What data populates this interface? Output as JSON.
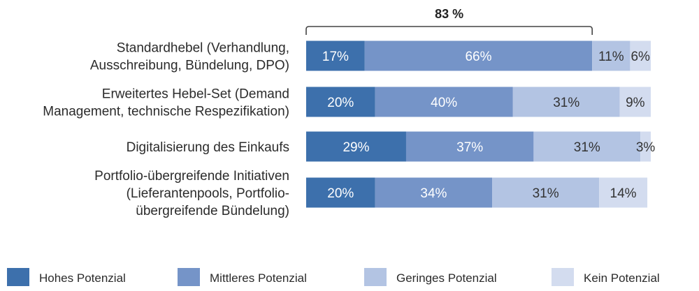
{
  "chart_data": {
    "type": "bar",
    "orientation": "horizontal",
    "stacked": true,
    "normalized": true,
    "grid": false,
    "legend_position": "bottom",
    "categories": [
      [
        "Standardhebel (Verhandlung,",
        "Ausschreibung, Bündelung, DPO)"
      ],
      [
        "Erweitertes Hebel-Set (Demand",
        "Management, technische Respezifikation)"
      ],
      [
        "Digitalisierung des Einkaufs"
      ],
      [
        "Portfolio-übergreifende Initiativen",
        "(Lieferantenpools, Portfolio-",
        "übergreifende Bündelung)"
      ]
    ],
    "series": [
      {
        "name": "Hohes Potenzial",
        "color": "#3d70ac",
        "label_color": "#ffffff",
        "values": [
          17,
          20,
          29,
          20
        ],
        "labels": [
          "17%",
          "20%",
          "29%",
          "20%"
        ]
      },
      {
        "name": "Mittleres Potenzial",
        "color": "#7594c8",
        "label_color": "#ffffff",
        "values": [
          66,
          40,
          37,
          34
        ],
        "labels": [
          "66%",
          "40%",
          "37%",
          "34%"
        ]
      },
      {
        "name": "Geringes Potenzial",
        "color": "#b3c4e3",
        "label_color": "#333333",
        "values": [
          11,
          31,
          31,
          31
        ],
        "labels": [
          "11%",
          "31%",
          "31%",
          "31%"
        ]
      },
      {
        "name": "Kein Potenzial",
        "color": "#d3dcef",
        "label_color": "#333333",
        "values": [
          6,
          9,
          3,
          14
        ],
        "labels": [
          "6%",
          "9%",
          "3%",
          "14%"
        ]
      }
    ],
    "annotation": {
      "text": "83 %",
      "category_index": 0,
      "value": 83
    }
  }
}
